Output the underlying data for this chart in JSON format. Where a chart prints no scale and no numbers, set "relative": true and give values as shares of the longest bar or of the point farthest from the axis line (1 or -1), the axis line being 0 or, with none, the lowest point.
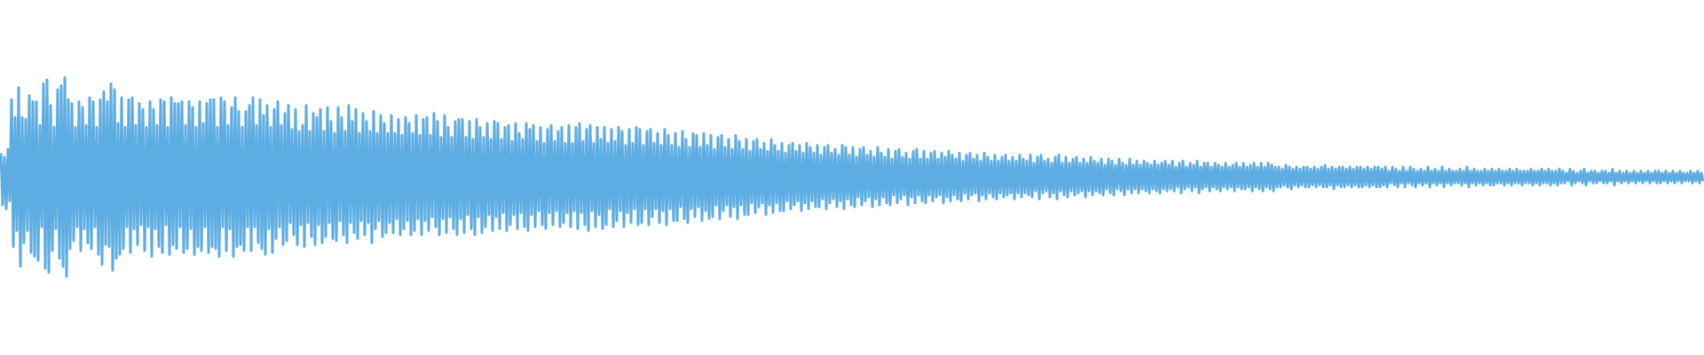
{
  "chart_data": {
    "type": "line",
    "relative": true,
    "color": "#5dade2",
    "categories": [
      null,
      null,
      null,
      null,
      null,
      null,
      null,
      null,
      null,
      null,
      null,
      null,
      null,
      null,
      null,
      null,
      null,
      null,
      null,
      null,
      null,
      null,
      null,
      null,
      null,
      null,
      null,
      null,
      null,
      null,
      null,
      null,
      null,
      null,
      null,
      null,
      null,
      null,
      null,
      null,
      null,
      null,
      null,
      null,
      null,
      null,
      null,
      null,
      null,
      null,
      null,
      null,
      null,
      null,
      null,
      null,
      null,
      null,
      null,
      null,
      null,
      null,
      null,
      null,
      null,
      null,
      null,
      null,
      null,
      null,
      null,
      null,
      null,
      null,
      null,
      null,
      null,
      null,
      null,
      null,
      null,
      null,
      null,
      null,
      null,
      null,
      null,
      null,
      null,
      null,
      null,
      null,
      null,
      null,
      null,
      null,
      null,
      null,
      null,
      null,
      null,
      null,
      null,
      null,
      null,
      null,
      null,
      null,
      null,
      null,
      null,
      null,
      null,
      null,
      null,
      null,
      null,
      null,
      null,
      null,
      null,
      null,
      null,
      null,
      null,
      null,
      null,
      null,
      null,
      null,
      null,
      null,
      null,
      null,
      null,
      null,
      null,
      null,
      null,
      null,
      null,
      null,
      null,
      null,
      null,
      null,
      null,
      null,
      null,
      null,
      null,
      null,
      null,
      null,
      null,
      null,
      null,
      null,
      null,
      null,
      null,
      null,
      null,
      null,
      null,
      null,
      null,
      null,
      null,
      null,
      null,
      null,
      null,
      null,
      null,
      null,
      null,
      null,
      null,
      null,
      null,
      null,
      null,
      null,
      null,
      null,
      null,
      null,
      null,
      null,
      null,
      null,
      null,
      null,
      null,
      null,
      null,
      null,
      null,
      null,
      null,
      null,
      null,
      null,
      null,
      null,
      null,
      null,
      null,
      null,
      null,
      null,
      null,
      null,
      null,
      null,
      null,
      null,
      null,
      null,
      null,
      null,
      null,
      null,
      null,
      null,
      null,
      null,
      null,
      null,
      null,
      null,
      null,
      null,
      null,
      null,
      null,
      null,
      null,
      null,
      null,
      null,
      null,
      null,
      null,
      null,
      null,
      null,
      null,
      null,
      null,
      null,
      null,
      null,
      null,
      null,
      null,
      null,
      null,
      null,
      null,
      null,
      null,
      null,
      null,
      null,
      null,
      null,
      null,
      null,
      null,
      null,
      null,
      null,
      null,
      null,
      null,
      null,
      null,
      null,
      null,
      null,
      null,
      null,
      null,
      null,
      null,
      null,
      null,
      null,
      null,
      null,
      null,
      null,
      null,
      null,
      null,
      null,
      null,
      null,
      null,
      null,
      null,
      null,
      null,
      null,
      null,
      null,
      null,
      null,
      null,
      null,
      null,
      null,
      null,
      null,
      null,
      null,
      null,
      null,
      null,
      null,
      null,
      null,
      null,
      null,
      null,
      null,
      null,
      null,
      null,
      null,
      null,
      null,
      null,
      null,
      null,
      null,
      null,
      null,
      null,
      null,
      null,
      null,
      null,
      null,
      null,
      null,
      null,
      null,
      null,
      null,
      null,
      null,
      null,
      null,
      null,
      null,
      null,
      null,
      null,
      null,
      null,
      null,
      null,
      null,
      null,
      null,
      null,
      null,
      null,
      null,
      null,
      null,
      null,
      null,
      null,
      null,
      null,
      null,
      null,
      null,
      null,
      null,
      null,
      null,
      null,
      null,
      null,
      null,
      null,
      null,
      null,
      null,
      null,
      null,
      null,
      null,
      null,
      null,
      null,
      null,
      null,
      null,
      null,
      null,
      null,
      null,
      null,
      null,
      null,
      null,
      null,
      null,
      null,
      null,
      null,
      null,
      null,
      null,
      null,
      null,
      null,
      null,
      null,
      null,
      null,
      null,
      null,
      null,
      null,
      null,
      null,
      null,
      null,
      null,
      null,
      null,
      null,
      null,
      null,
      null,
      null,
      null,
      null,
      null,
      null,
      null,
      null,
      null,
      null,
      null,
      null,
      null,
      null,
      null,
      null,
      null,
      null,
      null,
      null,
      null,
      null,
      null,
      null,
      null,
      null,
      null,
      null,
      null,
      null,
      null,
      null,
      null,
      null,
      null,
      null,
      null,
      null,
      null,
      null,
      null,
      null,
      null,
      null,
      null,
      null,
      null,
      null,
      null,
      null,
      null,
      null,
      null,
      null,
      null,
      null,
      null,
      null,
      null,
      null,
      null,
      null,
      null,
      null,
      null,
      null,
      null,
      null,
      null,
      null,
      null,
      null,
      null,
      null,
      null,
      null,
      null,
      null,
      null,
      null,
      null,
      null,
      null,
      null,
      null,
      null,
      null,
      null,
      null,
      null,
      null,
      null,
      null,
      null,
      null,
      null,
      null,
      null,
      null,
      null,
      null,
      null,
      null,
      null,
      null,
      null,
      null,
      null,
      null,
      null,
      null,
      null,
      null,
      null,
      null,
      null,
      null,
      null,
      null,
      null,
      null,
      null,
      null,
      null,
      null,
      null,
      null,
      null,
      null,
      null,
      null,
      null,
      null,
      null,
      null,
      null,
      null,
      null,
      null,
      null,
      null,
      null,
      null,
      null,
      null,
      null,
      null,
      null,
      null,
      null,
      null,
      null,
      null,
      null,
      null,
      null,
      null,
      null,
      null,
      null,
      null,
      null,
      null,
      null,
      null,
      null,
      null,
      null,
      null,
      null,
      null,
      null,
      null,
      null,
      null,
      null,
      null,
      null,
      null,
      null,
      null,
      null,
      null,
      null,
      null,
      null,
      null,
      null,
      null,
      null,
      null,
      null,
      null,
      null,
      null,
      null,
      null,
      null,
      null,
      null,
      null,
      null,
      null,
      null,
      null,
      null,
      null,
      null,
      null,
      null,
      null,
      null,
      null,
      null,
      null,
      null,
      null,
      null,
      null,
      null,
      null,
      null,
      null,
      null,
      null,
      null,
      null,
      null,
      null,
      null,
      null,
      null,
      null,
      null,
      null,
      null,
      null,
      null,
      null,
      null,
      null,
      null,
      null,
      null,
      null,
      null,
      null,
      null,
      null,
      null,
      null,
      null,
      null,
      null,
      null,
      null,
      null,
      null,
      null,
      null,
      null,
      null,
      null,
      null,
      null,
      null,
      null,
      null,
      null,
      null,
      null,
      null,
      null,
      null,
      null,
      null,
      null,
      null,
      null,
      null,
      null,
      null,
      null,
      null,
      null,
      null,
      null,
      null,
      null,
      null,
      null,
      null,
      null,
      null,
      null,
      null,
      null,
      null,
      null,
      null,
      null,
      null,
      null,
      null,
      null,
      null,
      null,
      null,
      null,
      null,
      null,
      null,
      null,
      null,
      null,
      null,
      null,
      null,
      null,
      null,
      null,
      null,
      null,
      null,
      null,
      null,
      null,
      null,
      null,
      null,
      null,
      null,
      null,
      null,
      null,
      null,
      null,
      null,
      null,
      null,
      null,
      null,
      null,
      null,
      null,
      null,
      null,
      null,
      null,
      null,
      null,
      null,
      null,
      null,
      null,
      null,
      null,
      null,
      null,
      null,
      null,
      null,
      null,
      null,
      null,
      null,
      null,
      null,
      null,
      null,
      null,
      null,
      null,
      null,
      null,
      null,
      null,
      null,
      null,
      null,
      null,
      null,
      null,
      null,
      null,
      null,
      null,
      null,
      null,
      null,
      null,
      null,
      null,
      null,
      null,
      null,
      null,
      null,
      null,
      null,
      null,
      null,
      null,
      null,
      null,
      null,
      null,
      null,
      null,
      null,
      null,
      null,
      null,
      null,
      null,
      null,
      null,
      null,
      null,
      null,
      null,
      null,
      null,
      null,
      null,
      null,
      null,
      null,
      null,
      null,
      null,
      null,
      null,
      null,
      null,
      null,
      null,
      null,
      null,
      null,
      null,
      null,
      null,
      null,
      null,
      null,
      null,
      null,
      null,
      null,
      null,
      null,
      null,
      null,
      null,
      null,
      null,
      null,
      null,
      null,
      null,
      null,
      null,
      null,
      null,
      null,
      null,
      null,
      null,
      null,
      null,
      null,
      null,
      null,
      null,
      null,
      null,
      null,
      null,
      null,
      null,
      null,
      null,
      null,
      null,
      null,
      null,
      null,
      null,
      null,
      null,
      null,
      null,
      null,
      null,
      null,
      null,
      null,
      null,
      null,
      null,
      null,
      null,
      null,
      null,
      null,
      null,
      null,
      null,
      null,
      null,
      null,
      null,
      null,
      null,
      null,
      null,
      null,
      null
    ],
    "values": [
      0.62,
      0.36,
      0.6,
      0.34,
      0.64,
      0.38,
      0.89,
      0.15,
      0.8,
      0.23,
      0.95,
      0.05,
      0.8,
      0.17,
      0.79,
      0.23,
      0.91,
      0.12,
      0.88,
      0.1,
      0.88,
      0.08,
      0.76,
      0.25,
      0.97,
      0.04,
      0.99,
      0.02,
      0.86,
      0.13,
      0.75,
      0.24,
      0.94,
      0.09,
      0.96,
      0.05,
      1.0,
      0.0,
      0.89,
      0.14,
      0.87,
      0.18,
      0.75,
      0.25,
      0.88,
      0.13,
      0.85,
      0.24,
      0.76,
      0.17,
      0.9,
      0.14,
      0.88,
      0.25,
      0.75,
      0.11,
      0.89,
      0.06,
      0.93,
      0.16,
      0.88,
      0.15,
      0.97,
      0.03,
      0.94,
      0.09,
      0.77,
      0.11,
      0.9,
      0.14,
      0.75,
      0.25,
      0.89,
      0.12,
      0.9,
      0.24,
      0.76,
      0.16,
      0.87,
      0.26,
      0.84,
      0.13,
      0.75,
      0.25,
      0.88,
      0.1,
      0.84,
      0.24,
      0.76,
      0.15,
      0.89,
      0.12,
      0.88,
      0.26,
      0.75,
      0.11,
      0.9,
      0.16,
      0.87,
      0.14,
      0.87,
      0.25,
      0.88,
      0.12,
      0.76,
      0.14,
      0.88,
      0.24,
      0.85,
      0.11,
      0.75,
      0.15,
      0.88,
      0.13,
      0.77,
      0.25,
      0.87,
      0.12,
      0.89,
      0.15,
      0.89,
      0.14,
      0.75,
      0.1,
      0.9,
      0.25,
      0.88,
      0.13,
      0.76,
      0.24,
      0.85,
      0.1,
      0.9,
      0.15,
      0.83,
      0.16,
      0.75,
      0.13,
      0.83,
      0.25,
      0.86,
      0.13,
      0.9,
      0.25,
      0.76,
      0.17,
      0.89,
      0.14,
      0.81,
      0.11,
      0.86,
      0.24,
      0.75,
      0.12,
      0.84,
      0.19,
      0.88,
      0.25,
      0.76,
      0.16,
      0.82,
      0.18,
      0.86,
      0.27,
      0.74,
      0.21,
      0.84,
      0.16,
      0.73,
      0.26,
      0.76,
      0.15,
      0.86,
      0.27,
      0.73,
      0.2,
      0.82,
      0.16,
      0.8,
      0.26,
      0.84,
      0.17,
      0.73,
      0.2,
      0.85,
      0.27,
      0.78,
      0.19,
      0.72,
      0.18,
      0.85,
      0.28,
      0.8,
      0.21,
      0.73,
      0.17,
      0.86,
      0.27,
      0.78,
      0.22,
      0.84,
      0.19,
      0.72,
      0.28,
      0.82,
      0.21,
      0.78,
      0.27,
      0.73,
      0.17,
      0.83,
      0.24,
      0.72,
      0.28,
      0.81,
      0.2,
      0.77,
      0.22,
      0.72,
      0.27,
      0.81,
      0.22,
      0.72,
      0.29,
      0.79,
      0.21,
      0.71,
      0.24,
      0.8,
      0.28,
      0.77,
      0.21,
      0.72,
      0.23,
      0.81,
      0.29,
      0.71,
      0.21,
      0.79,
      0.28,
      0.8,
      0.23,
      0.71,
      0.3,
      0.82,
      0.25,
      0.78,
      0.21,
      0.7,
      0.29,
      0.81,
      0.22,
      0.75,
      0.3,
      0.7,
      0.24,
      0.78,
      0.21,
      0.79,
      0.29,
      0.79,
      0.22,
      0.7,
      0.31,
      0.78,
      0.24,
      0.69,
      0.21,
      0.79,
      0.3,
      0.75,
      0.22,
      0.7,
      0.25,
      0.77,
      0.31,
      0.69,
      0.23,
      0.78,
      0.3,
      0.77,
      0.24,
      0.69,
      0.32,
      0.75,
      0.23,
      0.76,
      0.26,
      0.68,
      0.31,
      0.77,
      0.24,
      0.72,
      0.32,
      0.69,
      0.25,
      0.77,
      0.23,
      0.74,
      0.31,
      0.76,
      0.25,
      0.68,
      0.33,
      0.75,
      0.26,
      0.67,
      0.24,
      0.74,
      0.32,
      0.76,
      0.26,
      0.68,
      0.33,
      0.73,
      0.25,
      0.75,
      0.27,
      0.67,
      0.32,
      0.76,
      0.25,
      0.67,
      0.33,
      0.75,
      0.24,
      0.77,
      0.32,
      0.68,
      0.26,
      0.74,
      0.23,
      0.76,
      0.33,
      0.67,
      0.25,
      0.75,
      0.31,
      0.69,
      0.24,
      0.75,
      0.26,
      0.67,
      0.34,
      0.74,
      0.25,
      0.68,
      0.28,
      0.75,
      0.33,
      0.73,
      0.25,
      0.66,
      0.32,
      0.74,
      0.27,
      0.67,
      0.34,
      0.75,
      0.26,
      0.74,
      0.27,
      0.66,
      0.34,
      0.73,
      0.26,
      0.74,
      0.3,
      0.67,
      0.34,
      0.72,
      0.27,
      0.66,
      0.33,
      0.74,
      0.26,
      0.71,
      0.34,
      0.66,
      0.28,
      0.72,
      0.28,
      0.65,
      0.35,
      0.73,
      0.29,
      0.69,
      0.27,
      0.65,
      0.34,
      0.72,
      0.3,
      0.71,
      0.35,
      0.65,
      0.28,
      0.72,
      0.33,
      0.66,
      0.29,
      0.71,
      0.3,
      0.64,
      0.36,
      0.7,
      0.29,
      0.71,
      0.33,
      0.65,
      0.36,
      0.69,
      0.3,
      0.64,
      0.35,
      0.71,
      0.29,
      0.68,
      0.36,
      0.64,
      0.31,
      0.69,
      0.31,
      0.63,
      0.37,
      0.68,
      0.32,
      0.69,
      0.35,
      0.64,
      0.37,
      0.67,
      0.31,
      0.63,
      0.36,
      0.69,
      0.32,
      0.66,
      0.37,
      0.63,
      0.33,
      0.67,
      0.33,
      0.62,
      0.38,
      0.66,
      0.34,
      0.67,
      0.36,
      0.63,
      0.38,
      0.66,
      0.33,
      0.62,
      0.37,
      0.67,
      0.34,
      0.65,
      0.38,
      0.62,
      0.35,
      0.66,
      0.35,
      0.61,
      0.39,
      0.65,
      0.34,
      0.66,
      0.37,
      0.62,
      0.39,
      0.64,
      0.35,
      0.61,
      0.38,
      0.66,
      0.34,
      0.65,
      0.39,
      0.61,
      0.36,
      0.65,
      0.35,
      0.6,
      0.4,
      0.64,
      0.36,
      0.65,
      0.38,
      0.61,
      0.4,
      0.63,
      0.35,
      0.6,
      0.39,
      0.65,
      0.36,
      0.62,
      0.4,
      0.6,
      0.37,
      0.64,
      0.36,
      0.59,
      0.41,
      0.63,
      0.37,
      0.64,
      0.39,
      0.6,
      0.41,
      0.62,
      0.36,
      0.59,
      0.4,
      0.63,
      0.37,
      0.64,
      0.41,
      0.59,
      0.38,
      0.63,
      0.37,
      0.59,
      0.41,
      0.62,
      0.38,
      0.63,
      0.4,
      0.59,
      0.41,
      0.62,
      0.37,
      0.6,
      0.4,
      0.63,
      0.38,
      0.61,
      0.41,
      0.59,
      0.39,
      0.62,
      0.38,
      0.58,
      0.42,
      0.61,
      0.39,
      0.62,
      0.41,
      0.59,
      0.42,
      0.61,
      0.38,
      0.58,
      0.41,
      0.62,
      0.39,
      0.6,
      0.42,
      0.58,
      0.4,
      0.61,
      0.39,
      0.58,
      0.42,
      0.6,
      0.4,
      0.61,
      0.41,
      0.58,
      0.42,
      0.6,
      0.39,
      0.58,
      0.42,
      0.61,
      0.4,
      0.59,
      0.42,
      0.58,
      0.41,
      0.61,
      0.4,
      0.57,
      0.43,
      0.6,
      0.39,
      0.61,
      0.42,
      0.58,
      0.43,
      0.59,
      0.4,
      0.57,
      0.42,
      0.6,
      0.39,
      0.61,
      0.43,
      0.57,
      0.41,
      0.6,
      0.4,
      0.57,
      0.43,
      0.59,
      0.41,
      0.6,
      0.42,
      0.57,
      0.43,
      0.59,
      0.4,
      0.57,
      0.43,
      0.6,
      0.41,
      0.58,
      0.43,
      0.57,
      0.42,
      0.59,
      0.41,
      0.56,
      0.44,
      0.59,
      0.42,
      0.58,
      0.41,
      0.56,
      0.44,
      0.59,
      0.43,
      0.57,
      0.41,
      0.56,
      0.44,
      0.59,
      0.42,
      0.56,
      0.44,
      0.58,
      0.42,
      0.56,
      0.44,
      0.58,
      0.43,
      0.57,
      0.42,
      0.56,
      0.44,
      0.58,
      0.43,
      0.56,
      0.42,
      0.57,
      0.44,
      0.58,
      0.43,
      0.56,
      0.44,
      0.58,
      0.43,
      0.55,
      0.45,
      0.57,
      0.42,
      0.58,
      0.44,
      0.55,
      0.45,
      0.57,
      0.43,
      0.56,
      0.45,
      0.58,
      0.42,
      0.55,
      0.44,
      0.57,
      0.45,
      0.57,
      0.43,
      0.55,
      0.45,
      0.57,
      0.44,
      0.56,
      0.43,
      0.55,
      0.45,
      0.57,
      0.44,
      0.55,
      0.45,
      0.56,
      0.43,
      0.57,
      0.45,
      0.55,
      0.44,
      0.57,
      0.44,
      0.55,
      0.45,
      0.56,
      0.43,
      0.57,
      0.45,
      0.55,
      0.44,
      0.57,
      0.43,
      0.55,
      0.45,
      0.57,
      0.44,
      0.56,
      0.43,
      0.55,
      0.45,
      0.55,
      0.45,
      0.54,
      0.46,
      0.56,
      0.45,
      0.55,
      0.44,
      0.54,
      0.46,
      0.55,
      0.45,
      0.54,
      0.46,
      0.55,
      0.45,
      0.55,
      0.45,
      0.54,
      0.46,
      0.55,
      0.45,
      0.54,
      0.46,
      0.55,
      0.45,
      0.56,
      0.45,
      0.54,
      0.46,
      0.55,
      0.44,
      0.54,
      0.46,
      0.55,
      0.45,
      0.55,
      0.45,
      0.54,
      0.46,
      0.55,
      0.45,
      0.54,
      0.46,
      0.55,
      0.45,
      0.55,
      0.45,
      0.54,
      0.46,
      0.55,
      0.45,
      0.54,
      0.46,
      0.55,
      0.45,
      0.55,
      0.45,
      0.54,
      0.46,
      0.55,
      0.45,
      0.53,
      0.47,
      0.55,
      0.46,
      0.54,
      0.45,
      0.53,
      0.47,
      0.55,
      0.45,
      0.53,
      0.47,
      0.55,
      0.46,
      0.54,
      0.45,
      0.53,
      0.47,
      0.54,
      0.46,
      0.53,
      0.47,
      0.55,
      0.45,
      0.53,
      0.47,
      0.54,
      0.46,
      0.53,
      0.47,
      0.55,
      0.45,
      0.53,
      0.47,
      0.54,
      0.46,
      0.53,
      0.47,
      0.53,
      0.47,
      0.54,
      0.46,
      0.53,
      0.47,
      0.55,
      0.45,
      0.53,
      0.47,
      0.54,
      0.46,
      0.53,
      0.47,
      0.53,
      0.46,
      0.54,
      0.47,
      0.53,
      0.46,
      0.54,
      0.46,
      0.53,
      0.47,
      0.54,
      0.47,
      0.53,
      0.46,
      0.53,
      0.47,
      0.54,
      0.46,
      0.53,
      0.47,
      0.54,
      0.47,
      0.53,
      0.46,
      0.53,
      0.47,
      0.53,
      0.47,
      0.54,
      0.46,
      0.53,
      0.47,
      0.53,
      0.46,
      0.54,
      0.47,
      0.53,
      0.47,
      0.54,
      0.46,
      0.53,
      0.47,
      0.53,
      0.46,
      0.54,
      0.47,
      0.53,
      0.47,
      0.52,
      0.48,
      0.54,
      0.46,
      0.53,
      0.47,
      0.52,
      0.48,
      0.53,
      0.47,
      0.54,
      0.46,
      0.52,
      0.48,
      0.53,
      0.47,
      0.53,
      0.47,
      0.52,
      0.48,
      0.53,
      0.47,
      0.53,
      0.47,
      0.52,
      0.48,
      0.54,
      0.46,
      0.52,
      0.48,
      0.53,
      0.47,
      0.52,
      0.48,
      0.53,
      0.47,
      0.52,
      0.48,
      0.53,
      0.47,
      0.52,
      0.48,
      0.53,
      0.47,
      0.52,
      0.48,
      0.53,
      0.47,
      0.52,
      0.48,
      0.53,
      0.47,
      0.53,
      0.47,
      0.52,
      0.48,
      0.53,
      0.47,
      0.52,
      0.48,
      0.53,
      0.47,
      0.52,
      0.48,
      0.53,
      0.47,
      0.52,
      0.48,
      0.52,
      0.48,
      0.53,
      0.47,
      0.52,
      0.48,
      0.53,
      0.47,
      0.52,
      0.48
    ]
  }
}
